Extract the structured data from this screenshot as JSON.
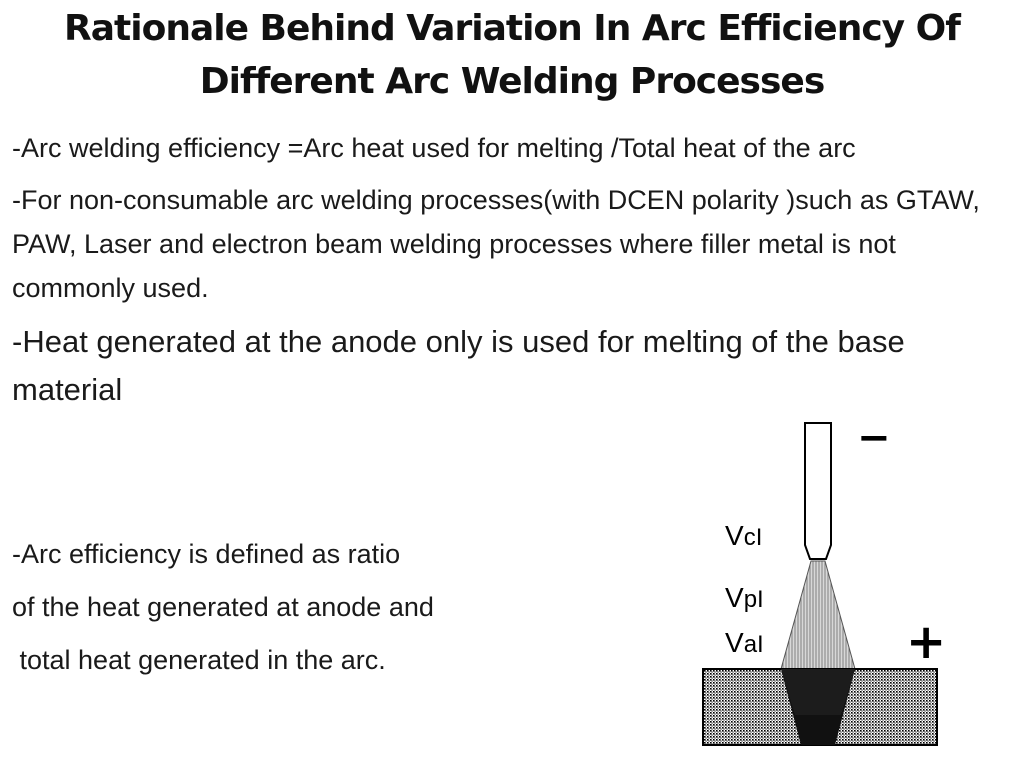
{
  "slide": {
    "title": "Rationale Behind Variation In Arc Efficiency Of Different Arc Welding Processes",
    "bullets": [
      "-Arc welding efficiency =Arc heat used for melting /Total heat of the arc",
      "-For non-consumable arc welding processes(with DCEN polarity )such as GTAW, PAW, Laser and electron beam welding processes where filler metal is not commonly used.",
      "-Heat generated at the anode only is used for melting of the base material"
    ],
    "ratio_lines": [
      "-Arc efficiency is defined as ratio",
      "of the heat generated at anode and",
      " total heat generated in the arc."
    ]
  },
  "diagram": {
    "electrode_polarity": "−",
    "workpiece_polarity": "+",
    "labels": {
      "cathode_main": "V",
      "cathode_sub": "c",
      "cathode_tail": "I",
      "plasma_main": "V",
      "plasma_sub": "p",
      "plasma_tail": "I",
      "anode_main": "V",
      "anode_sub": "a",
      "anode_tail": "I"
    }
  }
}
